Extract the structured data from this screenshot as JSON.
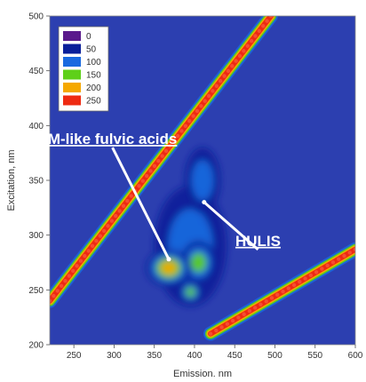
{
  "chart_data": {
    "type": "heatmap",
    "xlabel": "Emission. nm",
    "ylabel": "Excitation, nm",
    "xlim": [
      220,
      600
    ],
    "ylim": [
      200,
      500
    ],
    "x_ticks": [
      250,
      300,
      350,
      400,
      450,
      500,
      550,
      600
    ],
    "y_ticks": [
      200,
      250,
      300,
      350,
      400,
      450,
      500
    ],
    "colorscale": [
      {
        "value": "0",
        "color": "#5a1a8c"
      },
      {
        "value": "50",
        "color": "#0a1f9a"
      },
      {
        "value": "100",
        "color": "#1a6ae0"
      },
      {
        "value": "150",
        "color": "#5ed01a"
      },
      {
        "value": "200",
        "color": "#f5a800"
      },
      {
        "value": "250",
        "color": "#ee2a12"
      }
    ],
    "background_color": "#2c3fb0",
    "legend_position": "top-left",
    "grid": false,
    "scatter_lines": [
      {
        "kind": "first-order Rayleigh",
        "points": [
          [
            220,
            240
          ],
          [
            495,
            500
          ]
        ]
      },
      {
        "kind": "second-order Rayleigh",
        "points": [
          [
            420,
            210
          ],
          [
            600,
            287
          ]
        ]
      }
    ],
    "peaks": [
      {
        "x": 368,
        "y": 270,
        "level": 200,
        "rx": 28,
        "ry": 17
      },
      {
        "x": 405,
        "y": 275,
        "level": 150,
        "rx": 22,
        "ry": 20
      },
      {
        "x": 395,
        "y": 248,
        "level": 150,
        "rx": 14,
        "ry": 10
      },
      {
        "x": 410,
        "y": 318,
        "level": 100,
        "rx": 10,
        "ry": 10
      },
      {
        "x": 395,
        "y": 290,
        "level": 100,
        "rx": 45,
        "ry": 55
      },
      {
        "x": 410,
        "y": 350,
        "level": 100,
        "rx": 22,
        "ry": 30
      }
    ],
    "annotations": [
      {
        "text": "M-like fulvic acids",
        "x": 298,
        "y": 388,
        "target": [
          368,
          278
        ]
      },
      {
        "text": "HULIS",
        "x": 479,
        "y": 295,
        "target": [
          412,
          330
        ]
      }
    ]
  }
}
